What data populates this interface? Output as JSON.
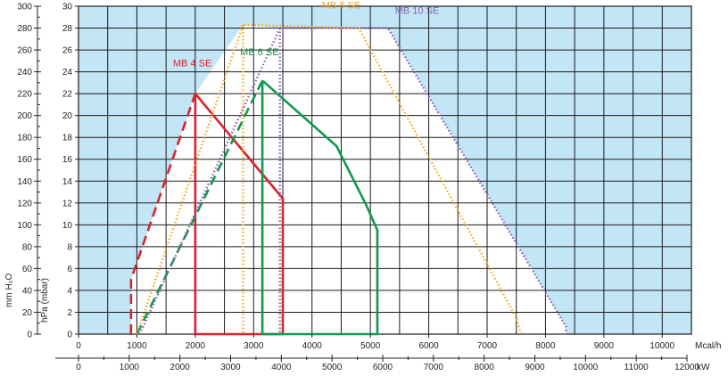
{
  "chart_data": {
    "type": "line",
    "grid": true,
    "axes": {
      "mmH2O": {
        "label": "mm H₂O",
        "range": [
          0,
          300
        ],
        "ticks": [
          0,
          20,
          40,
          60,
          80,
          100,
          120,
          140,
          160,
          180,
          200,
          220,
          240,
          260,
          280,
          300
        ]
      },
      "hPa": {
        "label": "hPa (mbar)",
        "range": [
          0,
          30
        ],
        "ticks": [
          0,
          2,
          4,
          6,
          8,
          10,
          12,
          14,
          16,
          18,
          20,
          22,
          24,
          26,
          28,
          30
        ]
      },
      "mcal": {
        "unit": "Mcal/h",
        "range": [
          0,
          10500
        ],
        "ticks": [
          0,
          1000,
          2000,
          3000,
          4000,
          5000,
          6000,
          7000,
          8000,
          9000,
          10000
        ]
      },
      "kw": {
        "unit": "kW",
        "range": [
          0,
          12200
        ],
        "ticks": [
          0,
          1000,
          2000,
          3000,
          4000,
          5000,
          6000,
          7000,
          8000,
          9000,
          10000,
          11000,
          12000
        ]
      }
    },
    "series": [
      {
        "name": "MB 4 SE",
        "color": "#d9232d",
        "style": "solid",
        "points": [
          [
            2000,
            22
          ],
          [
            2000,
            0
          ],
          [
            3500,
            0
          ],
          [
            3500,
            12.4
          ],
          [
            2000,
            22
          ]
        ]
      },
      {
        "name": "",
        "color": "#d9232d",
        "style": "dashed",
        "points": [
          [
            900,
            0
          ],
          [
            900,
            5
          ],
          [
            2000,
            22
          ]
        ]
      },
      {
        "name": "MB 6 SE",
        "color": "#0e9a4f",
        "style": "solid",
        "points": [
          [
            3150,
            23.2
          ],
          [
            3150,
            0
          ],
          [
            5120,
            0
          ],
          [
            5120,
            9.5
          ],
          [
            4930,
            11.8
          ],
          [
            4420,
            17.2
          ],
          [
            3150,
            23.2
          ]
        ]
      },
      {
        "name": "",
        "color": "#0e9a4f",
        "style": "dashed",
        "points": [
          [
            1000,
            0
          ],
          [
            3150,
            23.2
          ]
        ]
      },
      {
        "name": "MB 8 SE",
        "color": "#f5a623",
        "style": "dotted",
        "points": [
          [
            1000,
            0
          ],
          [
            2820,
            28.3
          ],
          [
            4800,
            28
          ],
          [
            7500,
            1.5
          ],
          [
            7580,
            0
          ]
        ]
      },
      {
        "name": "",
        "color": "#f5a623",
        "style": "dotted",
        "points": [
          [
            2820,
            28.3
          ],
          [
            2820,
            0
          ]
        ]
      },
      {
        "name": "MB 10 SE",
        "color": "#8b5fb3",
        "style": "dotted",
        "points": [
          [
            1050,
            0
          ],
          [
            3450,
            28
          ],
          [
            5300,
            28
          ],
          [
            8350,
            0.7
          ],
          [
            8350,
            0
          ]
        ]
      },
      {
        "name": "",
        "color": "#8b5fb3",
        "style": "dotted",
        "points": [
          [
            3450,
            28
          ],
          [
            3450,
            0
          ]
        ]
      }
    ],
    "labels": [
      {
        "text": "MB 4 SE",
        "x": 1950,
        "y": 24.5,
        "color": "#d9232d"
      },
      {
        "text": "MB 6 SE",
        "x": 3100,
        "y": 25.5,
        "color": "#0e9a4f"
      },
      {
        "text": "MB 8 SE",
        "x": 4500,
        "y": 29.8,
        "color": "#f5a623"
      },
      {
        "text": "MB 10 SE",
        "x": 5800,
        "y": 29.3,
        "color": "#8b5fb3"
      }
    ],
    "colors": {
      "outside": "#c3e6f7",
      "inside": "#ffffff",
      "grid": "#1a1a1a"
    }
  }
}
